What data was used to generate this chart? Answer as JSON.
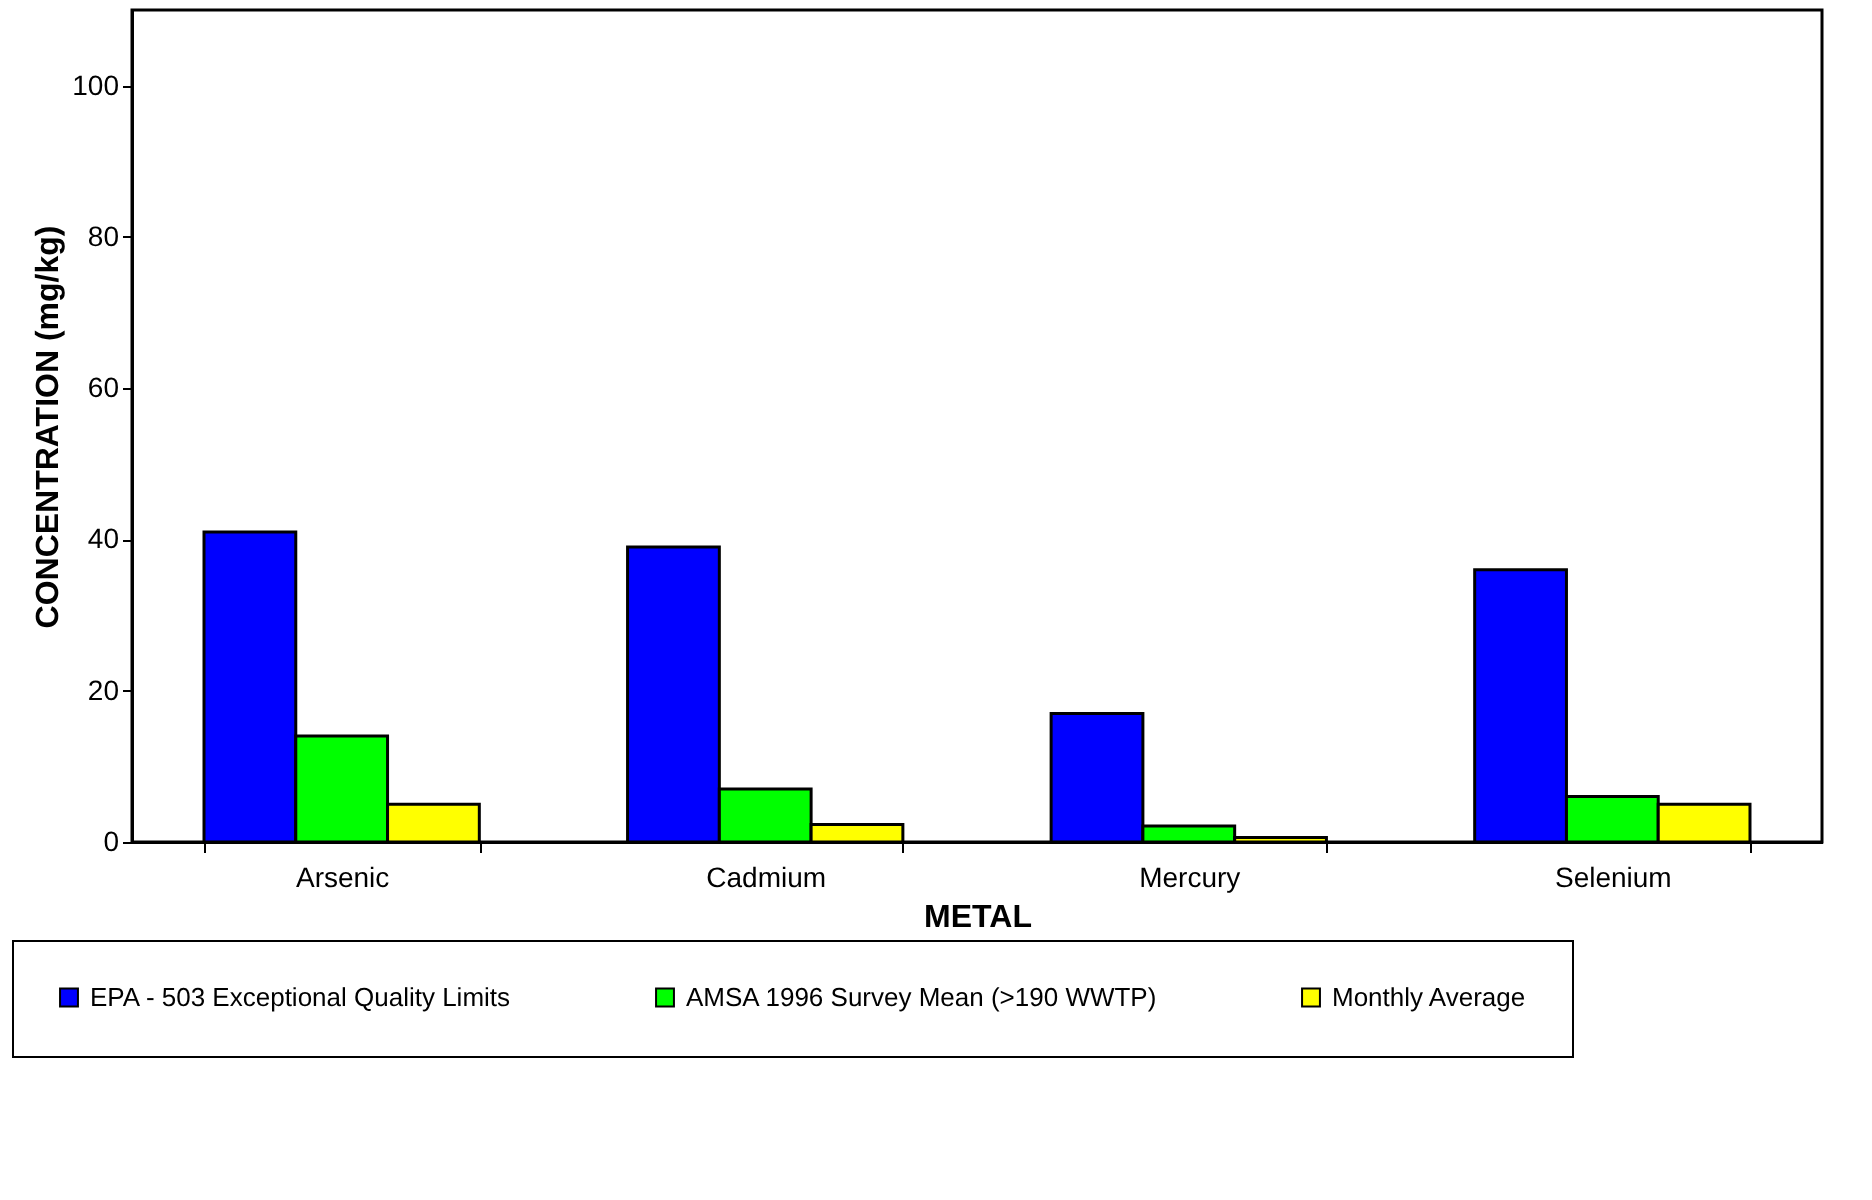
{
  "chart_data": {
    "type": "bar",
    "xlabel": "METAL",
    "ylabel": "CONCENTRATION (mg/kg)",
    "categories": [
      "Arsenic",
      "Cadmium",
      "Mercury",
      "Selenium"
    ],
    "series": [
      {
        "name": "EPA - 503 Exceptional Quality Limits",
        "color": "#0000ff",
        "values": [
          41,
          39,
          17,
          36
        ]
      },
      {
        "name": "AMSA 1996 Survey Mean (>190 WWTP)",
        "color": "#00ff00",
        "values": [
          14,
          7,
          2.1,
          6
        ]
      },
      {
        "name": "Monthly Average",
        "color": "#ffff00",
        "values": [
          5,
          2.3,
          0.6,
          5
        ]
      }
    ],
    "ylim": [
      0,
      110
    ],
    "yticks": [
      0,
      20,
      40,
      60,
      80,
      100
    ],
    "grid": false,
    "legend": "bottom"
  }
}
